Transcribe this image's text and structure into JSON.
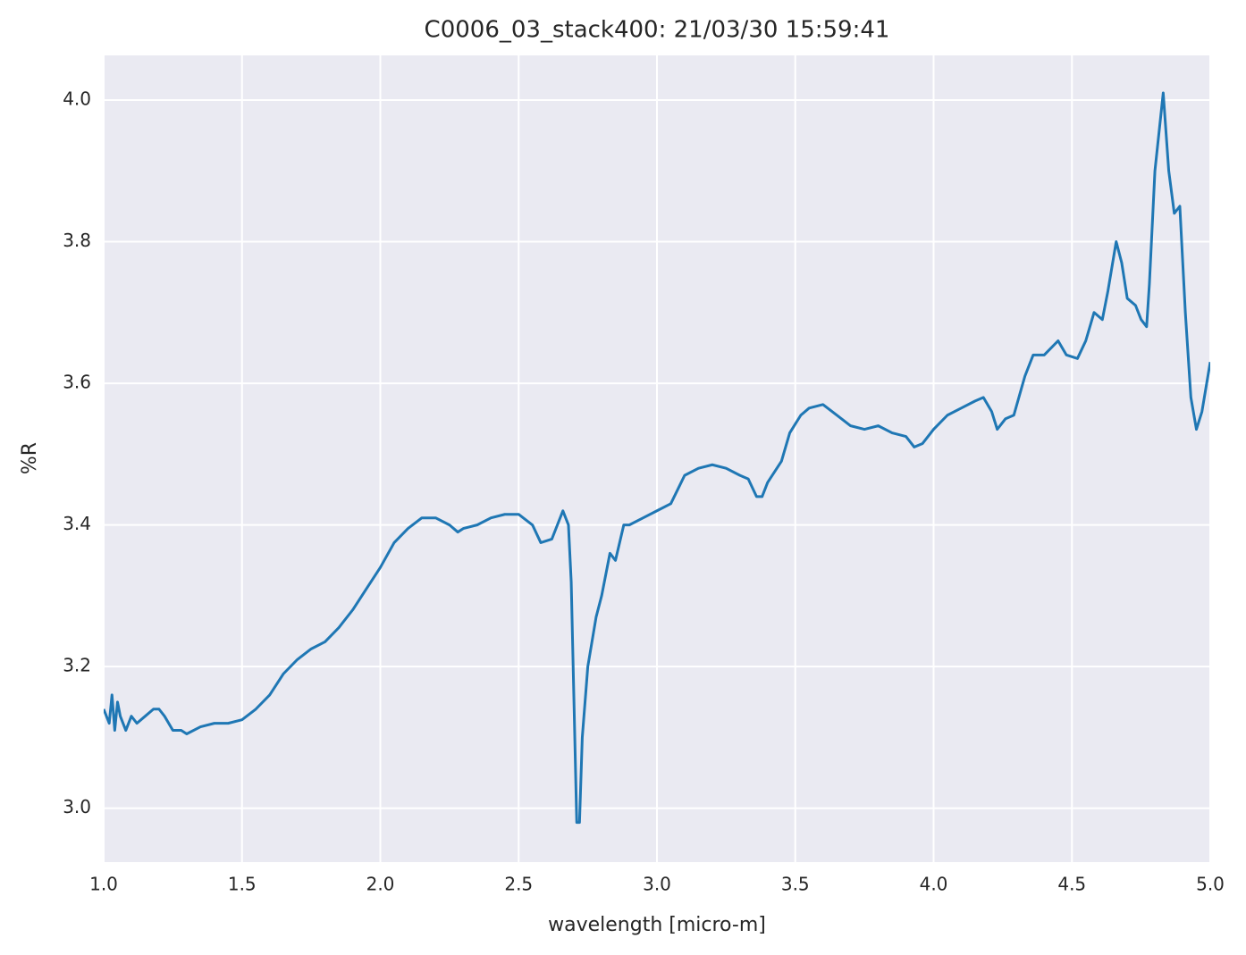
{
  "chart_data": {
    "type": "line",
    "title": "C0006_03_stack400:  21/03/30 15:59:41",
    "x_label": "wavelength [micro-m]",
    "y_label": "%R",
    "xlim": [
      1.0,
      5.0
    ],
    "ylim": [
      2.924,
      4.063
    ],
    "xticks": [
      {
        "value": 1.0,
        "label": "1.0"
      },
      1.5,
      {
        "value": 2.0,
        "label": "2.0"
      },
      2.5,
      {
        "value": 3.0,
        "label": "3.0"
      },
      3.5,
      {
        "value": 4.0,
        "label": "4.0"
      },
      4.5,
      {
        "value": 5.0,
        "label": "5.0"
      }
    ],
    "yticks": [
      {
        "value": 3.0,
        "label": "3.0"
      },
      3.2,
      3.4,
      3.6,
      3.8,
      {
        "value": 4.0,
        "label": "4.0"
      }
    ],
    "grid": true,
    "background": "#eaeaf2",
    "series": [
      {
        "color": "#1f77b4",
        "x": [
          1.0,
          1.02,
          1.03,
          1.04,
          1.05,
          1.06,
          1.08,
          1.1,
          1.12,
          1.15,
          1.18,
          1.2,
          1.22,
          1.25,
          1.28,
          1.3,
          1.35,
          1.4,
          1.45,
          1.5,
          1.55,
          1.6,
          1.65,
          1.7,
          1.75,
          1.8,
          1.85,
          1.9,
          1.95,
          2.0,
          2.05,
          2.1,
          2.15,
          2.2,
          2.25,
          2.28,
          2.3,
          2.35,
          2.4,
          2.45,
          2.5,
          2.55,
          2.58,
          2.62,
          2.64,
          2.66,
          2.68,
          2.69,
          2.7,
          2.71,
          2.72,
          2.73,
          2.75,
          2.78,
          2.8,
          2.83,
          2.85,
          2.88,
          2.9,
          2.95,
          3.0,
          3.05,
          3.1,
          3.15,
          3.2,
          3.25,
          3.3,
          3.33,
          3.36,
          3.38,
          3.4,
          3.45,
          3.48,
          3.52,
          3.55,
          3.6,
          3.65,
          3.7,
          3.75,
          3.8,
          3.85,
          3.9,
          3.93,
          3.96,
          4.0,
          4.05,
          4.1,
          4.15,
          4.18,
          4.21,
          4.23,
          4.26,
          4.29,
          4.33,
          4.36,
          4.4,
          4.45,
          4.48,
          4.52,
          4.55,
          4.58,
          4.61,
          4.63,
          4.66,
          4.68,
          4.7,
          4.73,
          4.75,
          4.77,
          4.78,
          4.8,
          4.83,
          4.85,
          4.87,
          4.89,
          4.91,
          4.93,
          4.95,
          4.97,
          5.0
        ],
        "values": [
          3.14,
          3.12,
          3.16,
          3.11,
          3.15,
          3.13,
          3.11,
          3.13,
          3.12,
          3.13,
          3.14,
          3.14,
          3.13,
          3.11,
          3.11,
          3.105,
          3.115,
          3.12,
          3.12,
          3.125,
          3.14,
          3.16,
          3.19,
          3.21,
          3.225,
          3.235,
          3.255,
          3.28,
          3.31,
          3.34,
          3.375,
          3.395,
          3.41,
          3.41,
          3.4,
          3.39,
          3.395,
          3.4,
          3.41,
          3.415,
          3.415,
          3.4,
          3.375,
          3.38,
          3.4,
          3.42,
          3.4,
          3.32,
          3.15,
          2.98,
          2.98,
          3.1,
          3.2,
          3.27,
          3.3,
          3.36,
          3.35,
          3.4,
          3.4,
          3.41,
          3.42,
          3.43,
          3.47,
          3.48,
          3.485,
          3.48,
          3.47,
          3.465,
          3.44,
          3.44,
          3.46,
          3.49,
          3.53,
          3.555,
          3.565,
          3.57,
          3.555,
          3.54,
          3.535,
          3.54,
          3.53,
          3.525,
          3.51,
          3.515,
          3.535,
          3.555,
          3.565,
          3.575,
          3.58,
          3.56,
          3.535,
          3.55,
          3.555,
          3.61,
          3.64,
          3.64,
          3.66,
          3.64,
          3.635,
          3.66,
          3.7,
          3.69,
          3.73,
          3.8,
          3.77,
          3.72,
          3.71,
          3.69,
          3.68,
          3.74,
          3.9,
          4.01,
          3.9,
          3.84,
          3.85,
          3.7,
          3.58,
          3.535,
          3.56,
          3.63
        ]
      }
    ]
  }
}
